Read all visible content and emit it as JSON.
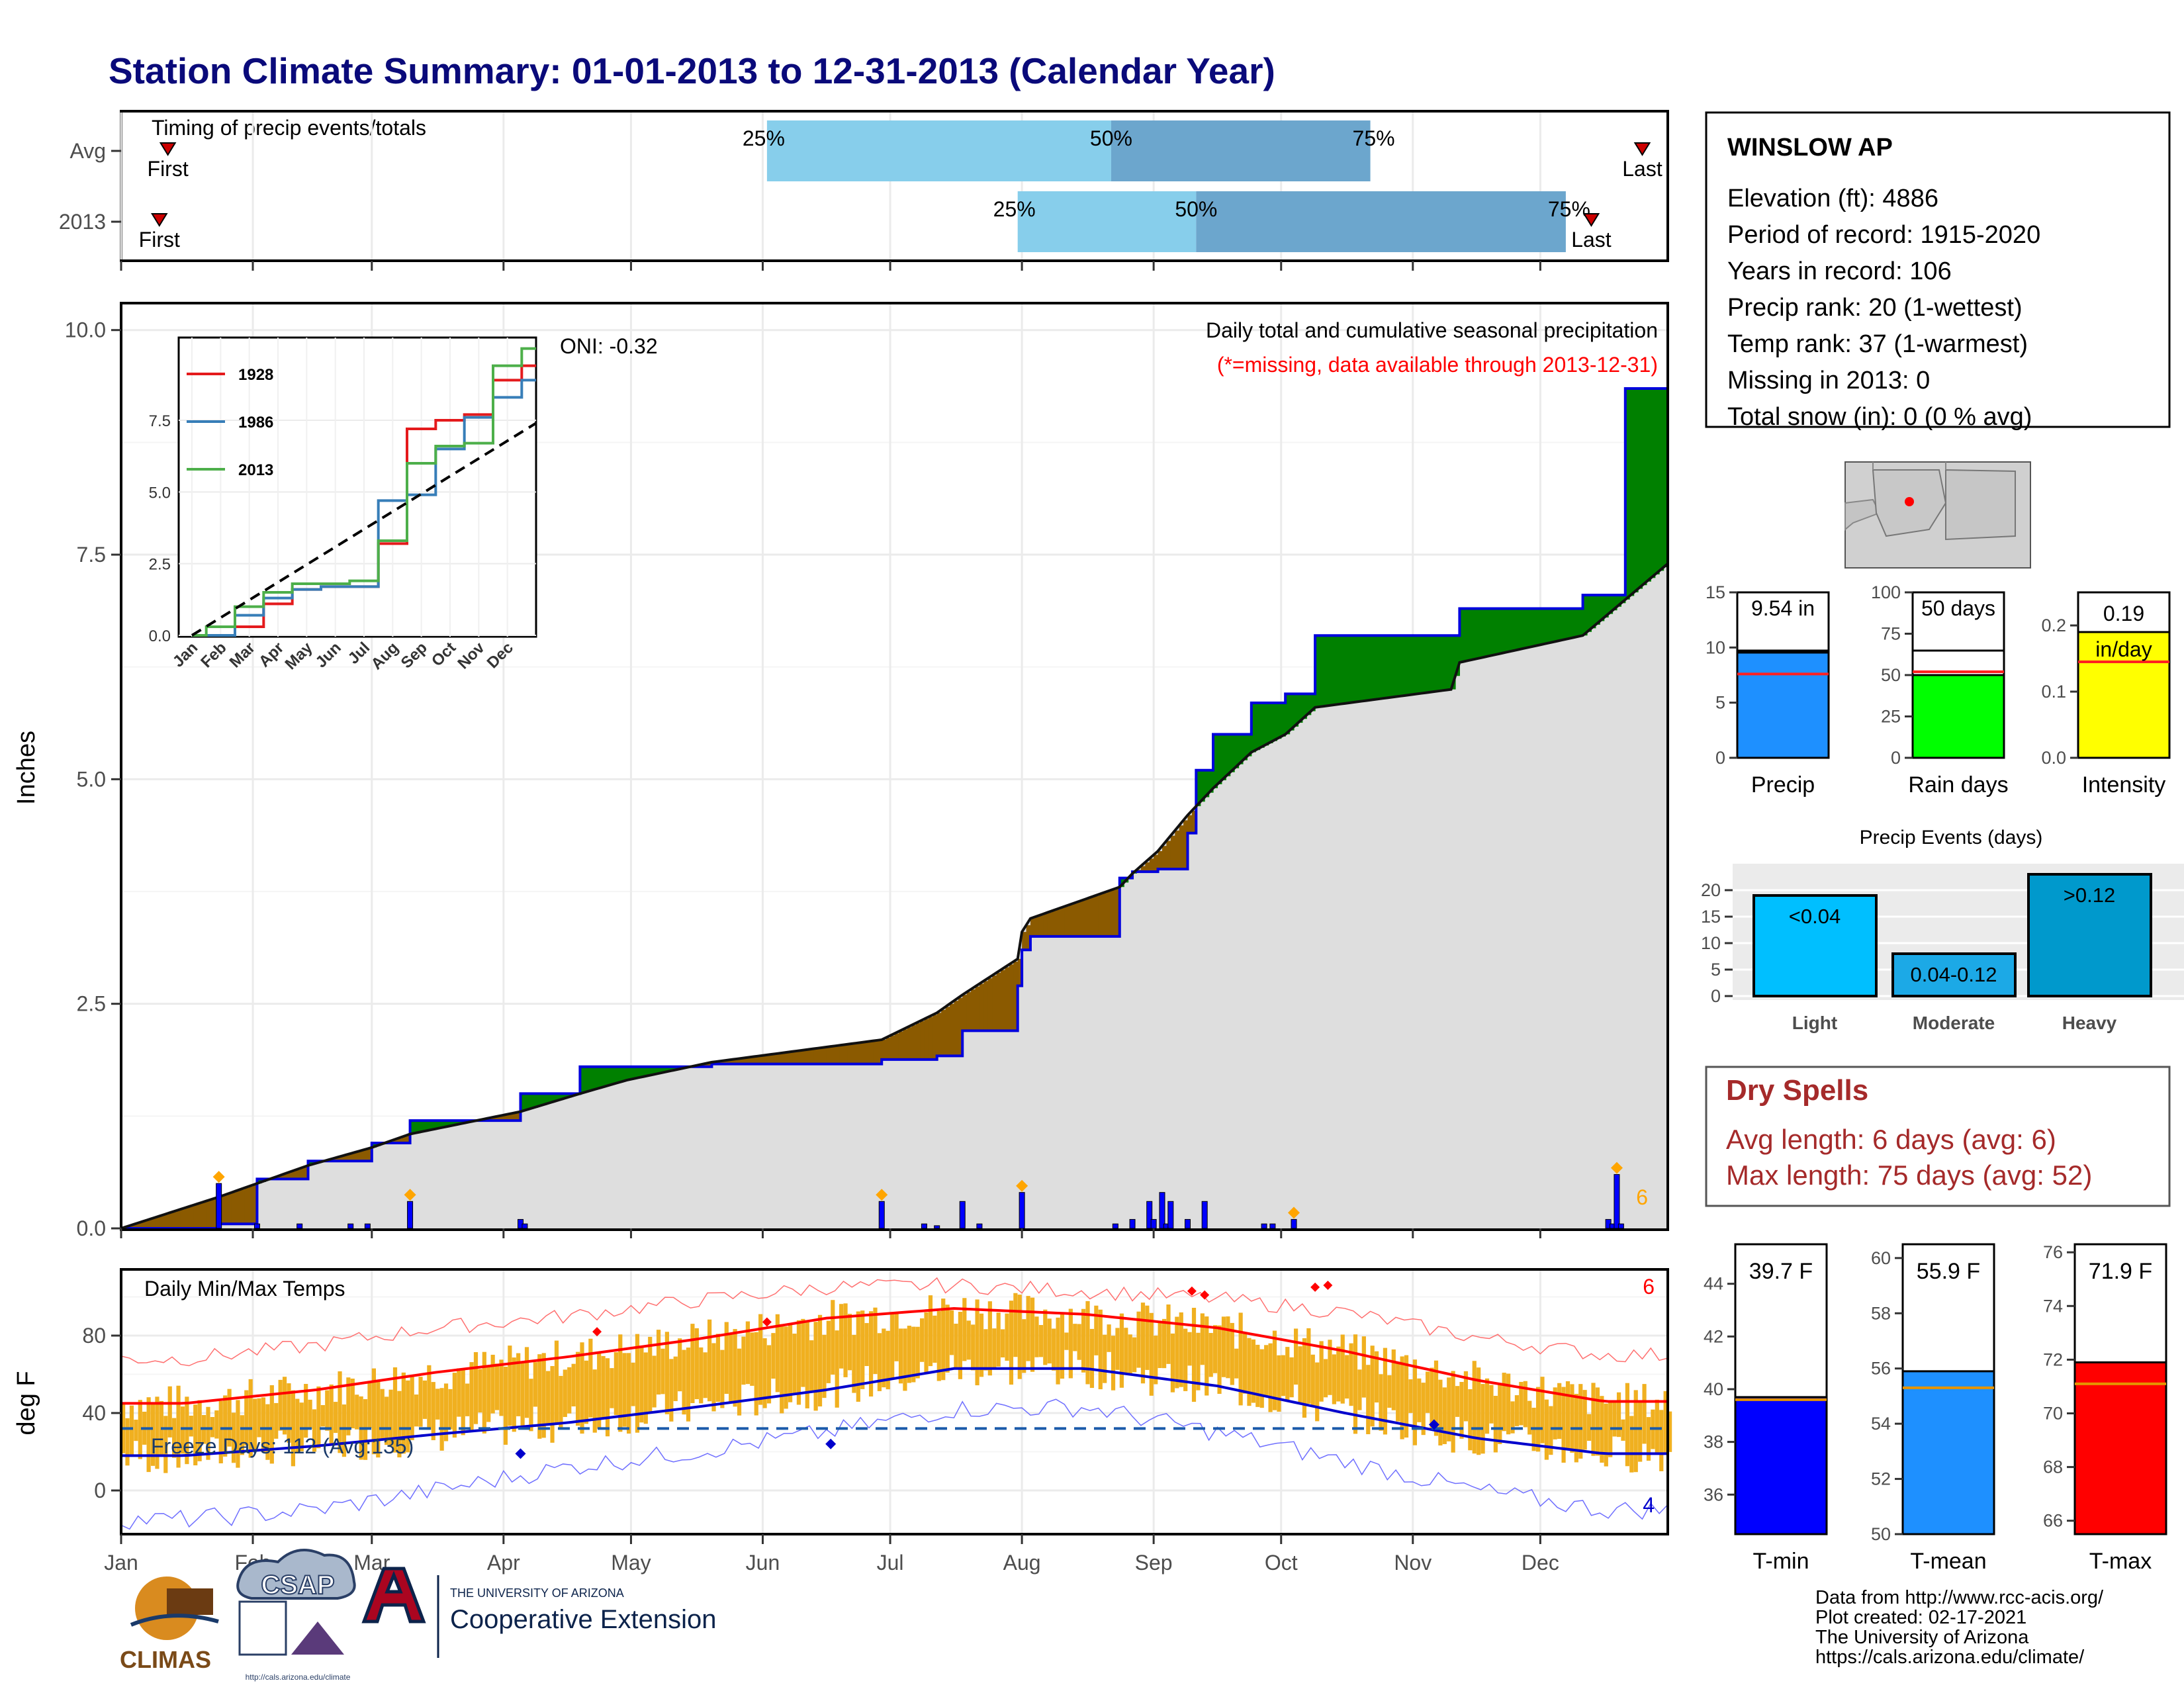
{
  "title": "Station Climate Summary: 01-01-2013 to 12-31-2013 (Calendar Year)",
  "colors": {
    "title": "#0a0a7a",
    "light_blue": "#87ceeb",
    "steel_blue": "#6ca6cd",
    "green": "#008000",
    "brown": "#8b5a00",
    "grey_fill": "#dedede",
    "blue_bar": "#0000ff",
    "orange": "#ffa500",
    "temp_bar": "#f0b020",
    "red": "#ff0000",
    "navy": "#0000cc",
    "dry_spells": "#a52a2a"
  },
  "timing": {
    "title": "Timing of precip events/totals",
    "rows": [
      {
        "label": "Avg",
        "first_day": 12,
        "p25_day": 153,
        "p50_day": 234,
        "p75_day": 295,
        "last_day": 359
      },
      {
        "label": "2013",
        "first_day": 10,
        "p25_day": 212,
        "p50_day": 254,
        "p75_day": 341,
        "last_day": 347
      }
    ],
    "first_label": "First",
    "last_label": "Last",
    "p25_label": "25%",
    "p50_label": "50%",
    "p75_label": "75%"
  },
  "precip_panel": {
    "ylabel": "Inches",
    "yticks": [
      "0.0",
      "2.5",
      "5.0",
      "7.5",
      "10.0"
    ],
    "oni": "ONI: -0.32",
    "caption": "Daily total and cumulative seasonal precipitation",
    "missing_note": "(*=missing, data available through 2013-12-31)",
    "corner_count": "6"
  },
  "inset": {
    "yticks": [
      "0.0",
      "2.5",
      "5.0",
      "7.5"
    ],
    "months": [
      "Jan",
      "Feb",
      "Mar",
      "Apr",
      "May",
      "Jun",
      "Jul",
      "Aug",
      "Sep",
      "Oct",
      "Nov",
      "Dec"
    ],
    "legend": [
      "1928",
      "1986",
      "2013"
    ]
  },
  "temp_panel": {
    "ylabel": "deg F",
    "title": "Daily Min/Max Temps",
    "freeze_text": "Freeze Days: 112 (Avg:135)",
    "yticks": [
      "0",
      "40",
      "80"
    ],
    "max_count": "6",
    "min_count": "4"
  },
  "months": [
    "Jan",
    "Feb",
    "Mar",
    "Apr",
    "May",
    "Jun",
    "Jul",
    "Aug",
    "Sep",
    "Oct",
    "Nov",
    "Dec"
  ],
  "station": {
    "name": "WINSLOW AP",
    "lines": [
      "Elevation (ft): 4886",
      "Period of record: 1915-2020",
      "Years in record: 106",
      "Precip rank: 20 (1-wettest)",
      "Temp rank: 37 (1-warmest)",
      "Missing in 2013: 0",
      "Total snow (in): 0 (0 % avg)"
    ]
  },
  "mini_bars": [
    {
      "label": "Precip",
      "value_text": "9.54 in",
      "value": 9.54,
      "avg": 7.6,
      "ymax": 15,
      "ticks": [
        "0",
        "5",
        "10",
        "15"
      ],
      "color": "#1e90ff"
    },
    {
      "label": "Rain days",
      "value_text": "50 days",
      "value": 50,
      "avg": 52,
      "ymax": 100,
      "ticks": [
        "0",
        "25",
        "50",
        "75",
        "100"
      ],
      "color": "#00ff00"
    },
    {
      "label": "Intensity",
      "value_text": "0.19",
      "value_text2": "in/day",
      "value": 0.19,
      "avg": 0.145,
      "ymax": 0.25,
      "ticks": [
        "0.0",
        "0.1",
        "0.2"
      ],
      "color": "#ffff00"
    }
  ],
  "precip_events": {
    "title": "Precip Events (days)",
    "yticks": [
      "0",
      "5",
      "10",
      "15",
      "20"
    ],
    "bars": [
      {
        "label": "Light",
        "value": 19,
        "text": "<0.04",
        "color": "#00bfff"
      },
      {
        "label": "Moderate",
        "value": 8,
        "text": "0.04-0.12",
        "color": "#1ca9e6"
      },
      {
        "label": "Heavy",
        "value": 23,
        "text": ">0.12",
        "color": "#0099cc"
      }
    ]
  },
  "dry_spells": {
    "title": "Dry Spells",
    "line1": "Avg length: 6 days (avg: 6)",
    "line2": "Max length: 75 days (avg: 52)"
  },
  "temp_bars": [
    {
      "label": "T-min",
      "value_text": "39.7 F",
      "value": 39.7,
      "avg": 39.6,
      "ymin": 34.5,
      "ymax": 45.5,
      "ticks": [
        "36",
        "38",
        "40",
        "42",
        "44"
      ],
      "color": "#0000ff"
    },
    {
      "label": "T-mean",
      "value_text": "55.9 F",
      "value": 55.9,
      "avg": 55.3,
      "ymin": 50,
      "ymax": 60.5,
      "ticks": [
        "50",
        "52",
        "54",
        "56",
        "58",
        "60"
      ],
      "color": "#1e90ff"
    },
    {
      "label": "T-max",
      "value_text": "71.9 F",
      "value": 71.9,
      "avg": 71.1,
      "ymin": 65.5,
      "ymax": 76.3,
      "ticks": [
        "66",
        "68",
        "70",
        "72",
        "74",
        "76"
      ],
      "color": "#ff0000"
    }
  ],
  "footer": {
    "lines": [
      "Data from http://www.rcc-acis.org/",
      "Plot created: 02-17-2021",
      "The University of Arizona",
      "https://cals.arizona.edu/climate/"
    ],
    "climas": "CLIMAS",
    "csap": "CSAP",
    "csap_url": "http://cals.arizona.edu/climate",
    "ua_line1": "THE UNIVERSITY OF ARIZONA",
    "ua_line2": "Cooperative Extension"
  },
  "chart_data": [
    {
      "type": "bar",
      "title": "Timing of precip events/totals",
      "categories": [
        "Avg",
        "2013"
      ],
      "series": [
        {
          "name": "First",
          "values": [
            12,
            10
          ]
        },
        {
          "name": "25%",
          "values": [
            153,
            212
          ]
        },
        {
          "name": "50%",
          "values": [
            234,
            254
          ]
        },
        {
          "name": "75%",
          "values": [
            295,
            341
          ]
        },
        {
          "name": "Last",
          "values": [
            359,
            347
          ]
        }
      ]
    },
    {
      "type": "area",
      "title": "Daily total and cumulative seasonal precipitation",
      "ylabel": "Inches",
      "ylim": [
        0,
        10.3
      ],
      "x": [
        1,
        24,
        33,
        45,
        60,
        69,
        95,
        109,
        120,
        140,
        180,
        193,
        199,
        212,
        213,
        215,
        236,
        239,
        245,
        252,
        254,
        258,
        267,
        275,
        282,
        314,
        316,
        345,
        355,
        365
      ],
      "series": [
        {
          "name": "2013 cumulative",
          "values": [
            0.0,
            0.05,
            0.55,
            0.75,
            0.95,
            1.2,
            1.5,
            1.8,
            1.8,
            1.83,
            1.88,
            1.92,
            2.2,
            2.7,
            3.1,
            3.25,
            3.9,
            3.97,
            4.0,
            4.4,
            5.1,
            5.5,
            5.85,
            5.95,
            6.6,
            6.6,
            6.9,
            7.05,
            9.35,
            9.54
          ]
        },
        {
          "name": "Avg cumulative",
          "values": [
            0.0,
            0.35,
            0.5,
            0.7,
            0.9,
            1.05,
            1.3,
            1.5,
            1.65,
            1.85,
            2.1,
            2.4,
            2.6,
            3.0,
            3.3,
            3.45,
            3.8,
            3.95,
            4.2,
            4.6,
            4.7,
            4.9,
            5.3,
            5.5,
            5.8,
            6.0,
            6.3,
            6.6,
            7.0,
            7.4
          ]
        },
        {
          "name": "Daily precip",
          "x": [
            24,
            33,
            43,
            55,
            59,
            69,
            95,
            96,
            180,
            190,
            193,
            199,
            203,
            213,
            235,
            239,
            243,
            244,
            246,
            247,
            248,
            252,
            256,
            270,
            272,
            277,
            351,
            352,
            353,
            354
          ],
          "values": [
            0.5,
            0.05,
            0.05,
            0.05,
            0.05,
            0.3,
            0.1,
            0.05,
            0.3,
            0.05,
            0.03,
            0.3,
            0.05,
            0.4,
            0.05,
            0.1,
            0.3,
            0.1,
            0.4,
            0.05,
            0.3,
            0.1,
            0.3,
            0.05,
            0.05,
            0.1,
            0.1,
            0.05,
            0.6,
            0.05
          ]
        }
      ]
    },
    {
      "type": "line",
      "title": "",
      "categories": [
        "Jan",
        "Feb",
        "Mar",
        "Apr",
        "May",
        "Jun",
        "Jul",
        "Aug",
        "Sep",
        "Oct",
        "Nov",
        "Dec"
      ],
      "ylim": [
        0,
        10.2
      ],
      "series": [
        {
          "name": "1928",
          "values": [
            0.0,
            0.3,
            1.1,
            1.6,
            1.7,
            1.7,
            3.2,
            7.2,
            7.5,
            7.7,
            8.9,
            9.4
          ]
        },
        {
          "name": "1986",
          "values": [
            0.0,
            0.7,
            1.3,
            1.6,
            1.7,
            1.7,
            4.7,
            4.9,
            6.5,
            7.6,
            8.3,
            8.9
          ]
        },
        {
          "name": "2013",
          "values": [
            0.3,
            1.0,
            1.5,
            1.8,
            1.8,
            1.9,
            3.3,
            6.0,
            6.6,
            6.7,
            9.4,
            10.0
          ]
        }
      ]
    },
    {
      "type": "line",
      "title": "Daily Min/Max Temps",
      "ylabel": "deg F",
      "categories": [
        "Jan",
        "Feb",
        "Mar",
        "Apr",
        "May",
        "Jun",
        "Jul",
        "Aug",
        "Sep",
        "Oct",
        "Nov",
        "Dec"
      ],
      "ylim": [
        -20,
        105
      ],
      "series": [
        {
          "name": "Avg max",
          "values": [
            45,
            52,
            61,
            69,
            78,
            89,
            94,
            91,
            84,
            72,
            57,
            46
          ]
        },
        {
          "name": "Avg min",
          "values": [
            18,
            23,
            29,
            35,
            43,
            52,
            63,
            63,
            54,
            40,
            27,
            19
          ]
        },
        {
          "name": "Record high",
          "values": [
            68,
            75,
            84,
            90,
            98,
            105,
            106,
            103,
            99,
            92,
            79,
            70
          ]
        },
        {
          "name": "Record low",
          "values": [
            -15,
            -10,
            0,
            12,
            20,
            30,
            42,
            43,
            30,
            15,
            0,
            -10
          ]
        }
      ]
    },
    {
      "type": "bar",
      "title": "Precip Events (days)",
      "categories": [
        "Light",
        "Moderate",
        "Heavy"
      ],
      "values": [
        19,
        8,
        23
      ]
    }
  ]
}
